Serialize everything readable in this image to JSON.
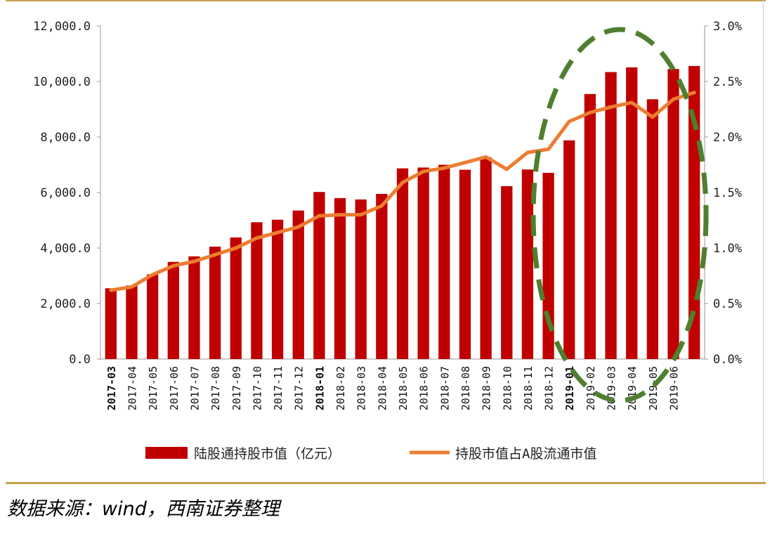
{
  "source_note": "数据来源：wind，西南证券整理",
  "colors": {
    "bar": "#c00000",
    "line": "#ed7d31",
    "highlight": "#4f7f2f",
    "rule": "#c8a04c"
  },
  "chart_data": {
    "type": "bar",
    "title": "",
    "categories": [
      "2017-03",
      "2017-04",
      "2017-05",
      "2017-06",
      "2017-07",
      "2017-08",
      "2017-09",
      "2017-10",
      "2017-11",
      "2017-12",
      "2018-01",
      "2018-02",
      "2018-03",
      "2018-04",
      "2018-05",
      "2018-06",
      "2018-07",
      "2018-08",
      "2018-09",
      "2018-10",
      "2018-11",
      "2018-12",
      "2019-01",
      "2019-02",
      "2019-03",
      "2019-04",
      "2019-05",
      "2019-06"
    ],
    "bold_categories": [
      "2017-03",
      "2018-01",
      "2019-01"
    ],
    "series": [
      {
        "name": "陆股通持股市值（亿元）",
        "type": "bar",
        "axis": "left",
        "values": [
          2550,
          2650,
          3050,
          3500,
          3700,
          4050,
          4380,
          4930,
          5020,
          5350,
          6020,
          5800,
          5750,
          5950,
          6870,
          6900,
          7000,
          6820,
          7270,
          6230,
          6830,
          6710,
          7880,
          9550,
          10340,
          10510,
          9360,
          10450
        ]
      },
      {
        "name": "持股市值占A股流通市值",
        "type": "line",
        "axis": "right",
        "values": [
          0.62,
          0.65,
          0.76,
          0.84,
          0.88,
          0.94,
          1.0,
          1.09,
          1.14,
          1.19,
          1.29,
          1.3,
          1.3,
          1.38,
          1.59,
          1.69,
          1.72,
          1.77,
          1.82,
          1.71,
          1.86,
          1.89,
          2.14,
          2.22,
          2.27,
          2.31,
          2.18,
          2.34
        ]
      }
    ],
    "extra_bar_value": 10560,
    "extra_line_value": 2.4,
    "y_left": {
      "ylim": [
        0,
        12000
      ],
      "ticks": [
        "0.0",
        "2,000.0",
        "4,000.0",
        "6,000.0",
        "8,000.0",
        "10,000.0",
        "12,000.0"
      ]
    },
    "y_right": {
      "ylim": [
        0,
        3.0
      ],
      "ticks": [
        "0.0%",
        "0.5%",
        "1.0%",
        "1.5%",
        "2.0%",
        "2.5%",
        "3.0%"
      ]
    },
    "grid": false,
    "legend": "bottom",
    "annotation": "dashed green ellipse highlighting 2019 data"
  }
}
